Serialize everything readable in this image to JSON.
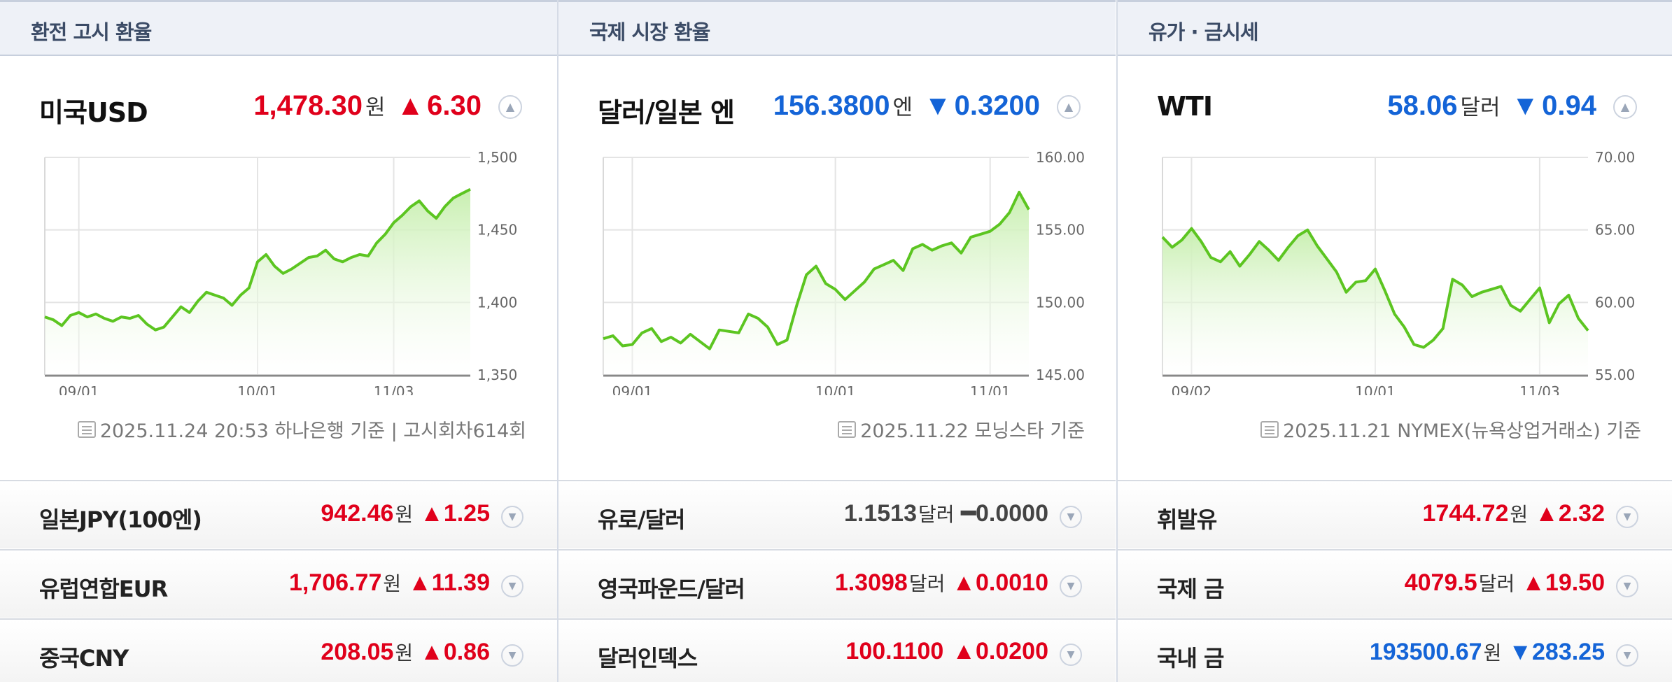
{
  "panels": [
    {
      "header": "환전 고시 환율",
      "main": {
        "name": "미국USD",
        "value": "1,478.30",
        "unit": "원",
        "arrow": "▲",
        "change": "6.30",
        "direction": "up"
      },
      "source": "2025.11.24 20:53 하나은행 기준 | 고시회차614회",
      "rows": [
        {
          "name": "일본JPY(100엔)",
          "value": "942.46",
          "unit": "원",
          "arrow": "▲",
          "change": "1.25",
          "direction": "up"
        },
        {
          "name": "유럽연합EUR",
          "value": "1,706.77",
          "unit": "원",
          "arrow": "▲",
          "change": "11.39",
          "direction": "up"
        },
        {
          "name": "중국CNY",
          "value": "208.05",
          "unit": "원",
          "arrow": "▲",
          "change": "0.86",
          "direction": "up"
        }
      ]
    },
    {
      "header": "국제 시장 환율",
      "main": {
        "name": "달러/일본 엔",
        "value": "156.3800",
        "unit": "엔",
        "arrow": "▼",
        "change": "0.3200",
        "direction": "down"
      },
      "source": "2025.11.22 모닝스타 기준",
      "rows": [
        {
          "name": "유로/달러",
          "value": "1.1513",
          "unit": "달러",
          "arrow": "━",
          "change": "0.0000",
          "direction": "flat"
        },
        {
          "name": "영국파운드/달러",
          "value": "1.3098",
          "unit": "달러",
          "arrow": "▲",
          "change": "0.0010",
          "direction": "up"
        },
        {
          "name": "달러인덱스",
          "value": "100.1100",
          "unit": "",
          "arrow": "▲",
          "change": "0.0200",
          "direction": "up"
        }
      ]
    },
    {
      "header": "유가 · 금시세",
      "main": {
        "name": "WTI",
        "value": "58.06",
        "unit": "달러",
        "arrow": "▼",
        "change": "0.94",
        "direction": "down"
      },
      "source": "2025.11.21 NYMEX(뉴욕상업거래소) 기준",
      "rows": [
        {
          "name": "휘발유",
          "value": "1744.72",
          "unit": "원",
          "arrow": "▲",
          "change": "2.32",
          "direction": "up"
        },
        {
          "name": "국제 금",
          "value": "4079.5",
          "unit": "달러",
          "arrow": "▲",
          "change": "19.50",
          "direction": "up"
        },
        {
          "name": "국내 금",
          "value": "193500.67",
          "unit": "원",
          "arrow": "▼",
          "change": "283.25",
          "direction": "down"
        }
      ]
    }
  ],
  "colors": {
    "up": "#e0001b",
    "down": "#1464d7",
    "line": "#5cc521",
    "fill_top": "#c8efb0",
    "fill_bottom": "#ffffff"
  },
  "chart_data": [
    {
      "type": "area",
      "series_of": "미국USD",
      "ylim": [
        1350,
        1500
      ],
      "yticks": [
        1350,
        1400,
        1450,
        1500
      ],
      "ytick_labels": [
        "1,350",
        "1,400",
        "1,450",
        "1,500"
      ],
      "xtick_labels": [
        "09/01",
        "10/01",
        "11/03"
      ],
      "xtick_index": [
        4,
        25,
        41
      ],
      "grid": true,
      "values": [
        1390,
        1388,
        1384,
        1391,
        1393,
        1390,
        1392,
        1389,
        1387,
        1390,
        1389,
        1391,
        1385,
        1381,
        1383,
        1390,
        1397,
        1393,
        1401,
        1407,
        1405,
        1403,
        1398,
        1405,
        1410,
        1428,
        1433,
        1425,
        1420,
        1423,
        1427,
        1431,
        1432,
        1436,
        1430,
        1428,
        1431,
        1433,
        1432,
        1441,
        1447,
        1455,
        1460,
        1466,
        1470,
        1463,
        1458,
        1466,
        1472,
        1475,
        1478
      ]
    },
    {
      "type": "area",
      "series_of": "달러/일본 엔",
      "ylim": [
        145,
        160
      ],
      "yticks": [
        145,
        150,
        155,
        160
      ],
      "ytick_labels": [
        "145.00",
        "150.00",
        "155.00",
        "160.00"
      ],
      "xtick_labels": [
        "09/01",
        "10/01",
        "11/01"
      ],
      "xtick_index": [
        3,
        24,
        40
      ],
      "grid": true,
      "values": [
        147.5,
        147.7,
        147.0,
        147.1,
        147.9,
        148.2,
        147.3,
        147.6,
        147.2,
        147.8,
        147.3,
        146.8,
        148.1,
        148.0,
        147.9,
        149.2,
        148.9,
        148.3,
        147.1,
        147.4,
        149.8,
        151.9,
        152.5,
        151.3,
        150.9,
        150.2,
        150.8,
        151.4,
        152.3,
        152.6,
        152.9,
        152.2,
        153.7,
        154.0,
        153.6,
        153.9,
        154.1,
        153.4,
        154.5,
        154.7,
        154.9,
        155.4,
        156.2,
        157.6,
        156.4
      ]
    },
    {
      "type": "area",
      "series_of": "WTI",
      "ylim": [
        55,
        70
      ],
      "yticks": [
        55,
        60,
        65,
        70
      ],
      "ytick_labels": [
        "55.00",
        "60.00",
        "65.00",
        "70.00"
      ],
      "xtick_labels": [
        "09/02",
        "10/01",
        "11/03"
      ],
      "xtick_index": [
        3,
        22,
        39
      ],
      "grid": true,
      "values": [
        64.5,
        63.8,
        64.3,
        65.1,
        64.2,
        63.1,
        62.8,
        63.5,
        62.5,
        63.3,
        64.2,
        63.6,
        62.9,
        63.8,
        64.6,
        65.0,
        63.9,
        63.0,
        62.1,
        60.7,
        61.4,
        61.5,
        62.3,
        60.8,
        59.2,
        58.3,
        57.1,
        56.9,
        57.4,
        58.2,
        61.6,
        61.2,
        60.4,
        60.7,
        60.9,
        61.1,
        59.8,
        59.4,
        60.2,
        61.0,
        58.6,
        59.9,
        60.5,
        58.9,
        58.06
      ]
    }
  ]
}
